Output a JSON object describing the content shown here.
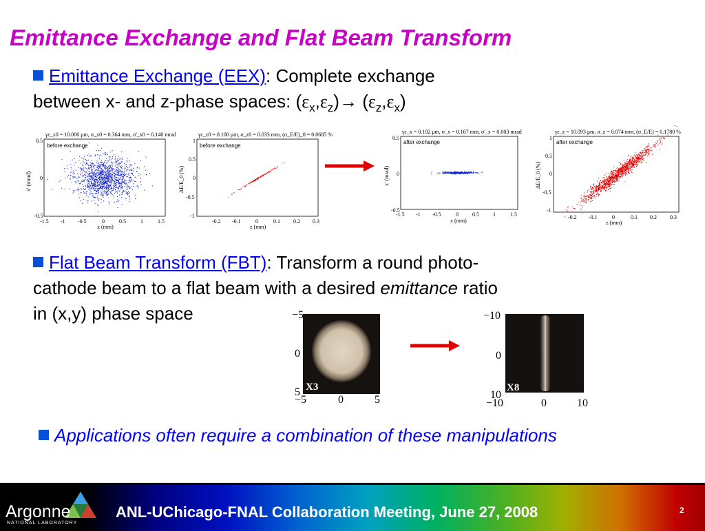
{
  "title": "Emittance Exchange and Flat Beam Transform",
  "eex": {
    "heading": "Emittance Exchange (EEX)",
    "text1": ": Complete exchange",
    "text2": "between x- and z-phase spaces:  (",
    "eps": "ε",
    "sub_x": "x",
    "sub_z": "z",
    "comma": ",",
    "close_paren": ")",
    "arrow": "→",
    "open_paren": " ("
  },
  "fbt": {
    "heading": "Flat Beam Transform (FBT)",
    "text1": ": Transform a round photo-",
    "text2a": "cathode beam to a flat beam with a desired ",
    "text2_em": "emittance",
    "text2b": " ratio",
    "text3": "in (x,y) phase space"
  },
  "applications": {
    "text": "Applications often require a combination of  these manipulations"
  },
  "plots": {
    "p1": {
      "caption": "before exchange",
      "header": "γε_x0 = 10.000 μm, σ_x0 = 0.364 mm, σ'_x0 = 0.140 mrad",
      "xlabel": "x (mm)",
      "ylabel": "x' (mrad)",
      "xticks": [
        "-1.5",
        "-1",
        "-0.5",
        "0",
        "0.5",
        "1",
        "1.5"
      ],
      "yticks": [
        "0.5",
        "0",
        "-0.5"
      ]
    },
    "p2": {
      "caption": "before exchange",
      "header": "γε_z0 = 0.100 μm, σ_z0 = 0.033 mm, (σ_E/E)_0 = 0.0685 %",
      "xlabel": "z (mm)",
      "ylabel": "ΔE/E_0 (%)",
      "xticks": [
        "-0.2",
        "-0.1",
        "0",
        "0.1",
        "0.2",
        "0.3"
      ],
      "yticks": [
        "1",
        "0.5",
        "0",
        "-0.5",
        "-1"
      ]
    },
    "p3": {
      "caption": "after exchange",
      "header": "γε_x = 0.102 μm, σ_x = 0.167 mm, σ'_x = 0.003 mrad",
      "xlabel": "x (mm)",
      "ylabel": "x' (mrad)",
      "xticks": [
        "-1.5",
        "-1",
        "-0.5",
        "0",
        "0.5",
        "1",
        "1.5"
      ],
      "yticks": [
        "0.5",
        "0",
        "-0.5"
      ]
    },
    "p4": {
      "caption": "after exchange",
      "header": "γε_z = 10.093 μm, σ_z = 0.074 mm, (σ_E/E) = 0.1780 %",
      "xlabel": "z (mm)",
      "ylabel": "ΔE/E_0 (%)",
      "xticks": [
        "-0.2",
        "-0.1",
        "0",
        "0.1",
        "0.2",
        "0.3"
      ],
      "yticks": [
        "1",
        "0.5",
        "0",
        "-0.5",
        "-1"
      ]
    }
  },
  "images": {
    "x3": {
      "label": "X3",
      "yticks": [
        "−5",
        "0",
        "5"
      ],
      "xticks": [
        "−5",
        "0",
        "5"
      ]
    },
    "x8": {
      "label": "X8",
      "yticks": [
        "−10",
        "0",
        "10"
      ],
      "xticks": [
        "−10",
        "0",
        "10"
      ]
    }
  },
  "footer": {
    "logo": "Argonne",
    "logo_sub": "NATIONAL LABORATORY",
    "meeting": "ANL-UChicago-FNAL Collaboration Meeting, June 27, 2008",
    "page": "2"
  },
  "colors": {
    "title": "#c800c8",
    "heading": "#0000ff",
    "bullet": "#0a4fd8",
    "arrow": "#e00000",
    "scatter_blue": "#1020d0",
    "scatter_red": "#e00000"
  }
}
